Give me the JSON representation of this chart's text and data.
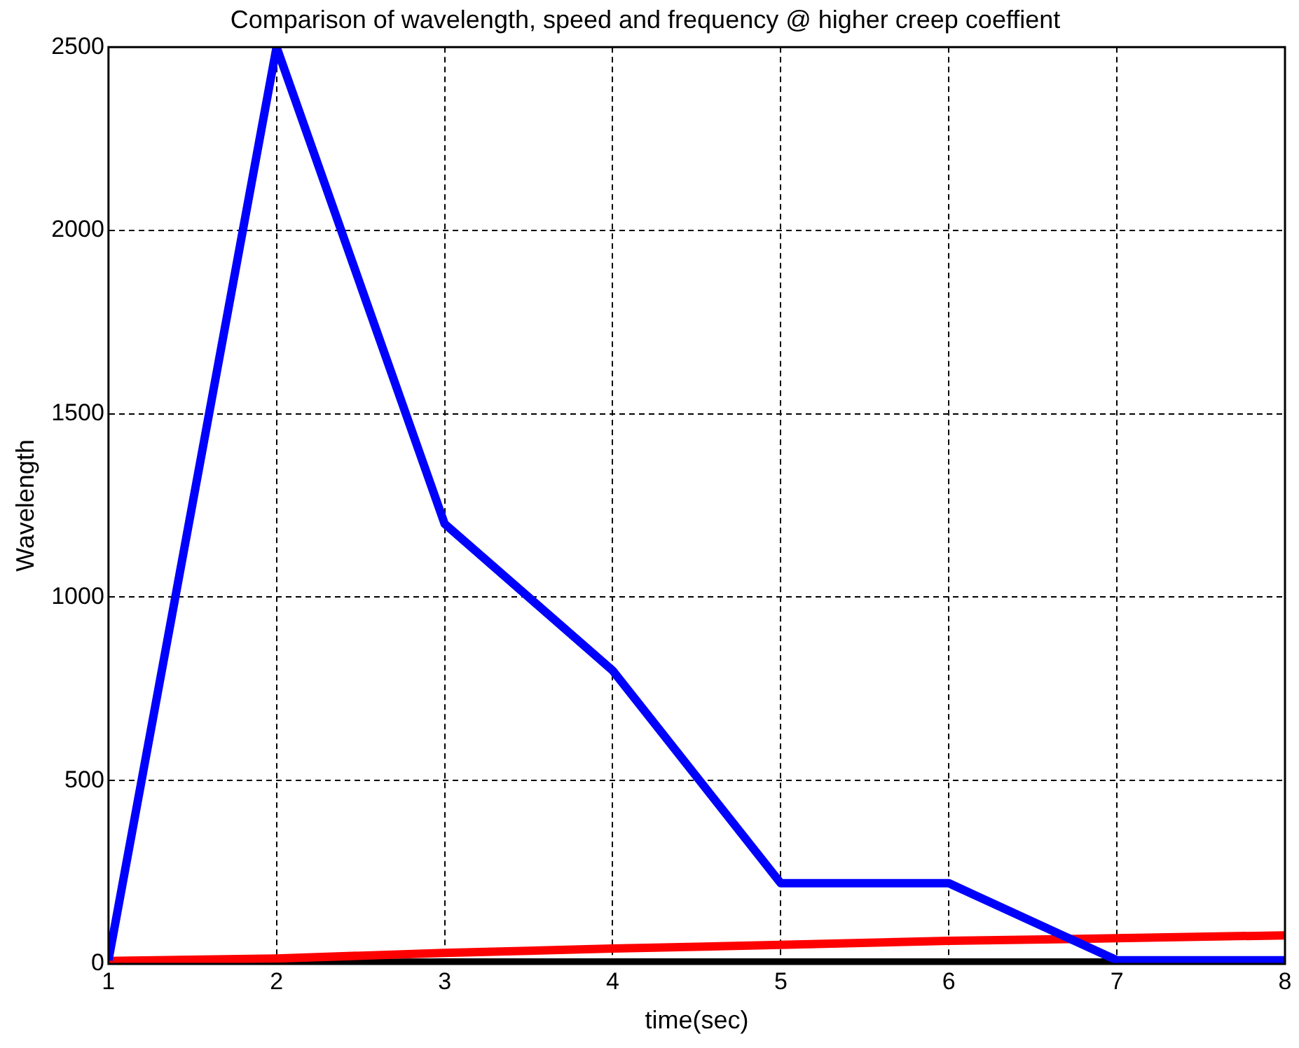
{
  "chart_data": {
    "type": "line",
    "title": "Comparison of wavelength, speed and frequency @ higher creep coeffient",
    "xlabel": "time(sec)",
    "ylabel": "Wavelength",
    "x": [
      1,
      2,
      3,
      4,
      5,
      6,
      7,
      8
    ],
    "series": [
      {
        "color": "#0000ff",
        "values": [
          10,
          2500,
          1200,
          800,
          220,
          220,
          10,
          10
        ]
      },
      {
        "color": "#ff0000",
        "values": [
          8,
          15,
          30,
          42,
          52,
          63,
          70,
          78
        ]
      },
      {
        "color": "#000000",
        "values": [
          0,
          2,
          4,
          4,
          4,
          4,
          4,
          4
        ]
      }
    ],
    "xlim": [
      1,
      8
    ],
    "xticks": [
      1,
      2,
      3,
      4,
      5,
      6,
      7,
      8
    ],
    "ylim": [
      0,
      2500
    ],
    "yticks": [
      0,
      500,
      1000,
      1500,
      2000,
      2500
    ],
    "grid": true,
    "line_style": "solid",
    "marker": "none"
  }
}
